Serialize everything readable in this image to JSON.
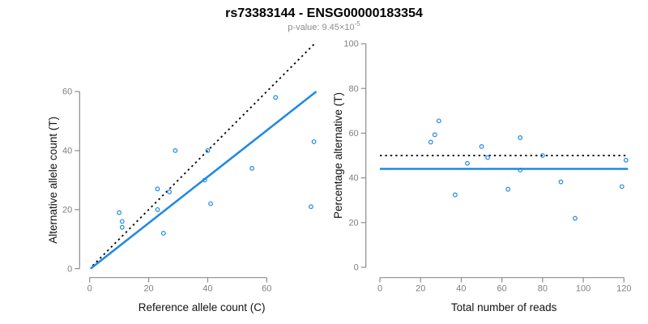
{
  "header": {
    "title": "rs73383144 - ENSG00000183354",
    "p_value_prefix": "p-value: 9.45×10",
    "p_value_exponent": "-5"
  },
  "colors": {
    "accent_blue": "#1E88E5",
    "line_black": "#000000",
    "axis_gray": "#8c8c8c",
    "tick_label_gray": "#808080"
  },
  "chart_data": [
    {
      "type": "scatter",
      "panel": "allele-counts",
      "xlabel": "Reference allele count (C)",
      "ylabel": "Alternative allele count (T)",
      "x_ticks": [
        0,
        20,
        40,
        60
      ],
      "y_ticks": [
        0,
        20,
        40,
        60
      ],
      "xlim": [
        0,
        76
      ],
      "ylim": [
        0,
        76
      ],
      "point_color": "#1E88E5",
      "points": [
        [
          10,
          19
        ],
        [
          11,
          16
        ],
        [
          11,
          14
        ],
        [
          23,
          27
        ],
        [
          23,
          20
        ],
        [
          25,
          12
        ],
        [
          27,
          26
        ],
        [
          29,
          40
        ],
        [
          39,
          30
        ],
        [
          40,
          40
        ],
        [
          41,
          22
        ],
        [
          55,
          34
        ],
        [
          63,
          58
        ],
        [
          75,
          21
        ],
        [
          76,
          43
        ]
      ],
      "lines": [
        {
          "name": "identity-line",
          "style": "dotted",
          "color": "#000000",
          "x1": 1,
          "y1": 1,
          "x2": 76.5,
          "y2": 76.5
        },
        {
          "name": "fit-line",
          "style": "solid",
          "color": "#1E88E5",
          "x1": 0.3,
          "y1": 0,
          "x2": 76.8,
          "y2": 60
        }
      ]
    },
    {
      "type": "scatter",
      "panel": "percentage-vs-coverage",
      "xlabel": "Total number of reads",
      "ylabel": "Percentage alternative (T)",
      "x_ticks": [
        0,
        20,
        40,
        60,
        80,
        100,
        120
      ],
      "y_ticks": [
        0,
        20,
        40,
        60,
        80,
        100
      ],
      "xlim": [
        0,
        122
      ],
      "ylim": [
        0,
        100
      ],
      "point_color": "#1E88E5",
      "points": [
        [
          25,
          56.0
        ],
        [
          27,
          59.3
        ],
        [
          29,
          65.5
        ],
        [
          37,
          32.4
        ],
        [
          43,
          46.5
        ],
        [
          50,
          54.0
        ],
        [
          53,
          49.1
        ],
        [
          63,
          34.9
        ],
        [
          69,
          58.0
        ],
        [
          69,
          43.5
        ],
        [
          80,
          50.0
        ],
        [
          89,
          38.2
        ],
        [
          96,
          21.9
        ],
        [
          119,
          36.1
        ],
        [
          121,
          47.9
        ]
      ],
      "lines": [
        {
          "name": "null-50pct-line",
          "style": "dotted",
          "color": "#000000",
          "x1": 0,
          "y1": 50,
          "x2": 121,
          "y2": 50
        },
        {
          "name": "fit-line",
          "style": "solid",
          "color": "#1E88E5",
          "x1": 0,
          "y1": 44,
          "x2": 122,
          "y2": 44
        }
      ]
    }
  ]
}
